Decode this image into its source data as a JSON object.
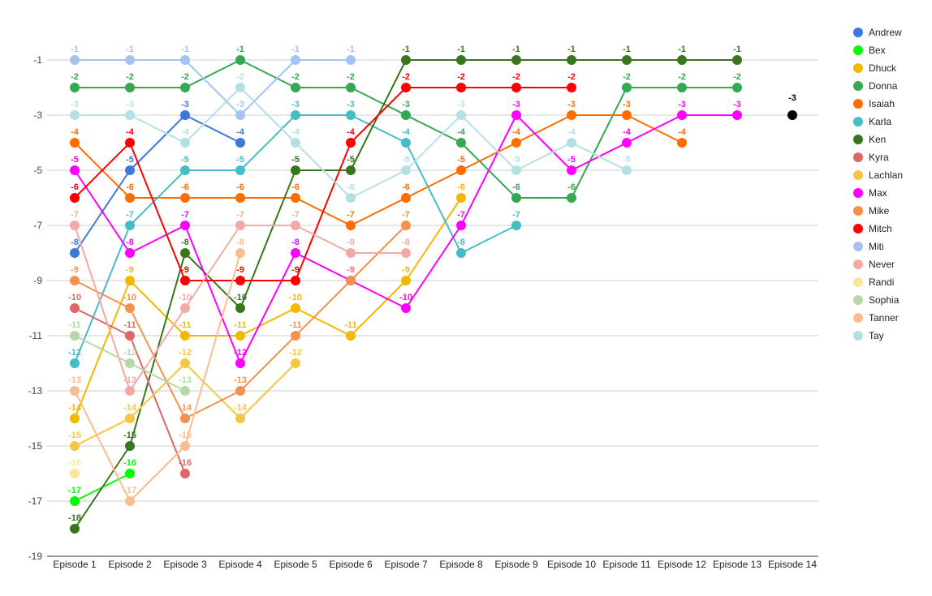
{
  "chart_data": {
    "type": "line",
    "title": "",
    "xlabel": "",
    "ylabel": "",
    "categories": [
      "Episode 1",
      "Episode 2",
      "Episode 3",
      "Episode 4",
      "Episode 5",
      "Episode 6",
      "Episode 7",
      "Episode 8",
      "Episode 9",
      "Episode 10",
      "Episode 11",
      "Episode 12",
      "Episode 13",
      "Episode 14"
    ],
    "y_ticks": [
      "-1",
      "-3",
      "-5",
      "-7",
      "-9",
      "-11",
      "-13",
      "-15",
      "-17",
      "-19"
    ],
    "ylim": [
      -19,
      0
    ],
    "grid": true,
    "legend_position": "right",
    "final_marker": {
      "x": 13,
      "y": -3,
      "label": "-3",
      "color": "#000000"
    },
    "series": [
      {
        "name": "Andrew",
        "color": "#3c78d8",
        "values": [
          -8,
          -5,
          -3,
          -4,
          null,
          null,
          null,
          null,
          null,
          null,
          null,
          null,
          null,
          null
        ]
      },
      {
        "name": "Bex",
        "color": "#00ff00",
        "values": [
          -17,
          -16,
          null,
          null,
          null,
          null,
          null,
          null,
          null,
          null,
          null,
          null,
          null,
          null
        ]
      },
      {
        "name": "Dhuck",
        "color": "#f1b800",
        "values": [
          -14,
          -9,
          -11,
          -11,
          -10,
          -11,
          -9,
          -6,
          null,
          null,
          null,
          null,
          null,
          null
        ]
      },
      {
        "name": "Donna",
        "color": "#34a853",
        "values": [
          -2,
          -2,
          -2,
          -1,
          -2,
          -2,
          -3,
          -4,
          -6,
          -6,
          -2,
          -2,
          -2,
          null
        ]
      },
      {
        "name": "Isaiah",
        "color": "#ff6d01",
        "values": [
          -4,
          -6,
          -6,
          -6,
          -6,
          -7,
          -6,
          -5,
          -4,
          -3,
          -3,
          -4,
          null,
          null
        ]
      },
      {
        "name": "Karla",
        "color": "#46bdc6",
        "values": [
          -12,
          -7,
          -5,
          -5,
          -3,
          -3,
          -4,
          -8,
          -7,
          null,
          null,
          null,
          null,
          null
        ]
      },
      {
        "name": "Ken",
        "color": "#38761d",
        "values": [
          -18,
          -15,
          -8,
          -10,
          -5,
          -5,
          -1,
          -1,
          -1,
          -1,
          -1,
          -1,
          -1,
          null
        ]
      },
      {
        "name": "Kyra",
        "color": "#e06666",
        "values": [
          -10,
          -11,
          -16,
          null,
          null,
          null,
          null,
          null,
          null,
          null,
          null,
          null,
          null,
          null
        ]
      },
      {
        "name": "Lachlan",
        "color": "#f6c543",
        "values": [
          -15,
          -14,
          -12,
          -14,
          -12,
          null,
          null,
          null,
          null,
          null,
          null,
          null,
          null,
          null
        ]
      },
      {
        "name": "Max",
        "color": "#ff00ff",
        "values": [
          -5,
          -8,
          -7,
          -12,
          -8,
          -9,
          -10,
          -7,
          -3,
          -5,
          -4,
          -3,
          -3,
          null
        ]
      },
      {
        "name": "Mike",
        "color": "#f6914d",
        "values": [
          -9,
          -10,
          -14,
          -13,
          -11,
          -9,
          -7,
          null,
          null,
          null,
          null,
          null,
          null,
          null
        ]
      },
      {
        "name": "Mitch",
        "color": "#ff0000",
        "values": [
          -6,
          -4,
          -9,
          -9,
          -9,
          -4,
          -2,
          -2,
          -2,
          -2,
          null,
          null,
          null,
          null
        ]
      },
      {
        "name": "Miti",
        "color": "#a4c2f4",
        "values": [
          -1,
          -1,
          -1,
          -3,
          -1,
          -1,
          null,
          null,
          null,
          null,
          null,
          null,
          null,
          null
        ]
      },
      {
        "name": "Never",
        "color": "#f4a9a4",
        "values": [
          -7,
          -13,
          -10,
          -7,
          -7,
          -8,
          -8,
          null,
          null,
          null,
          null,
          null,
          null,
          null
        ]
      },
      {
        "name": "Randi",
        "color": "#ffe599",
        "values": [
          -16,
          null,
          null,
          null,
          null,
          null,
          null,
          null,
          null,
          null,
          null,
          null,
          null,
          null
        ]
      },
      {
        "name": "Sophia",
        "color": "#b6d7a8",
        "values": [
          -11,
          -12,
          -13,
          null,
          null,
          null,
          null,
          null,
          null,
          null,
          null,
          null,
          null,
          null
        ]
      },
      {
        "name": "Tanner",
        "color": "#f9bd8f",
        "values": [
          -13,
          -17,
          -15,
          -8,
          null,
          null,
          null,
          null,
          null,
          null,
          null,
          null,
          null,
          null
        ]
      },
      {
        "name": "Tay",
        "color": "#b4e0e4",
        "values": [
          -3,
          -3,
          -4,
          -2,
          -4,
          -6,
          -5,
          -3,
          -5,
          -4,
          -5,
          null,
          null,
          null
        ]
      }
    ]
  }
}
